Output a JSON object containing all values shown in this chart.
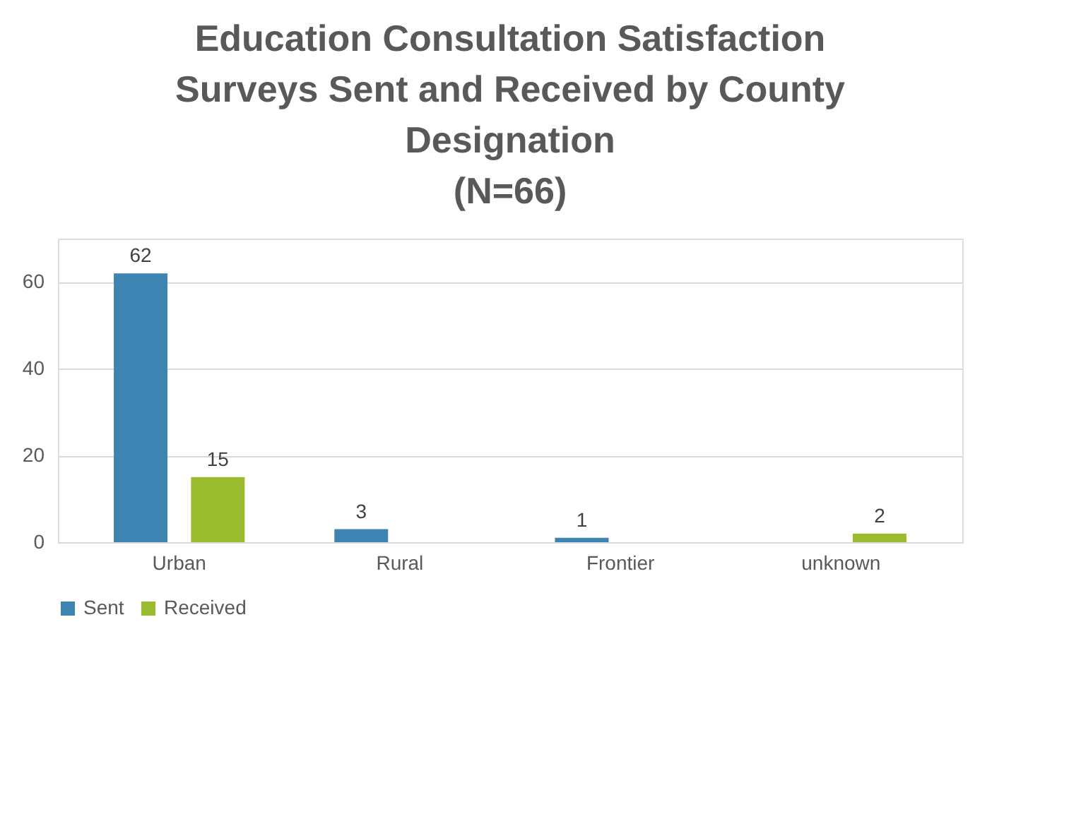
{
  "chart_data": {
    "type": "bar",
    "title": "Education Consultation Satisfaction Surveys Sent and Received by County Designation",
    "subtitle": "(N=66)",
    "categories": [
      "Urban",
      "Rural",
      "Frontier",
      "unknown"
    ],
    "series": [
      {
        "name": "Sent",
        "color": "#3e84b2",
        "values": [
          62,
          3,
          1,
          null
        ]
      },
      {
        "name": "Received",
        "color": "#9bbb2f",
        "values": [
          15,
          null,
          null,
          2
        ]
      }
    ],
    "ylim": [
      0,
      70
    ],
    "yticks": [
      0,
      20,
      40,
      60
    ],
    "grid": "y",
    "legend": "bottom",
    "data_labels": true
  }
}
